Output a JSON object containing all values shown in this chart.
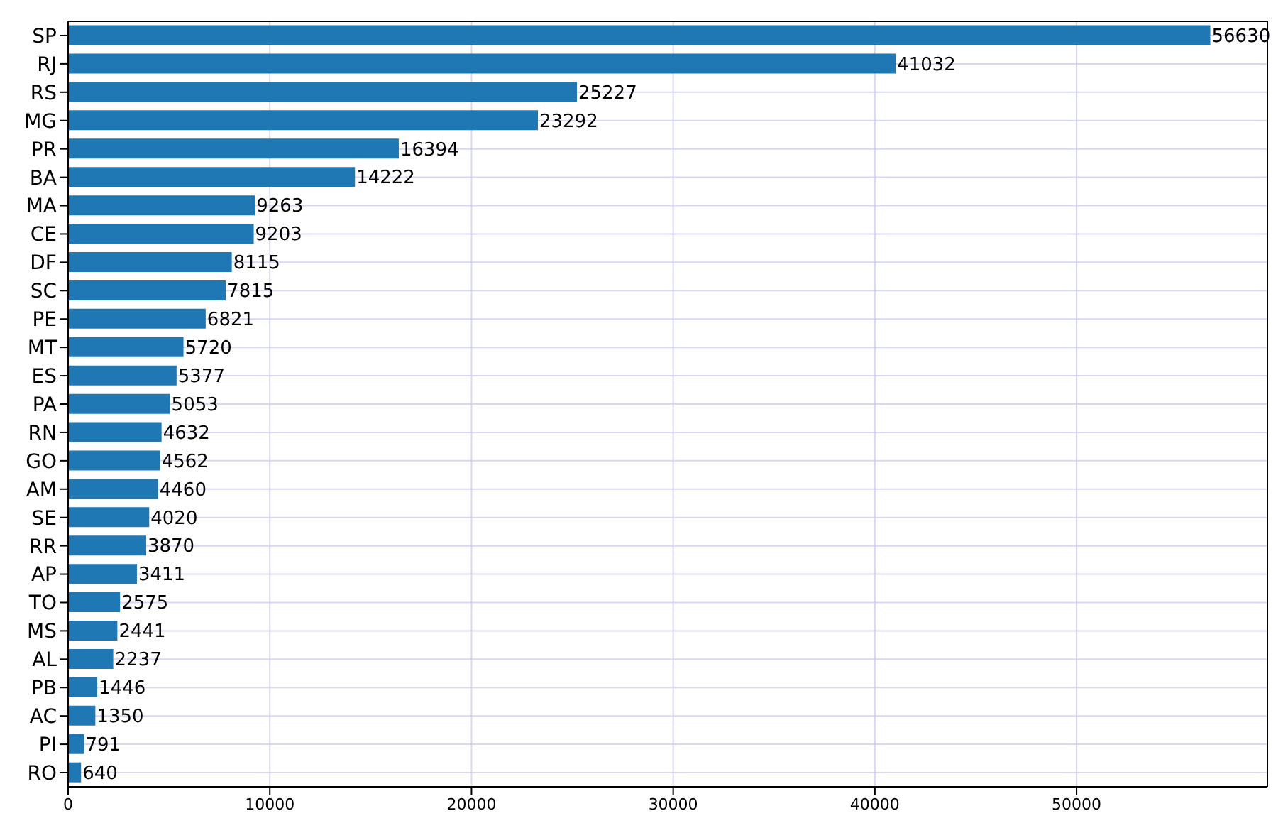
{
  "chart_data": {
    "type": "bar",
    "orientation": "horizontal",
    "categories": [
      "SP",
      "RJ",
      "RS",
      "MG",
      "PR",
      "BA",
      "MA",
      "CE",
      "DF",
      "SC",
      "PE",
      "MT",
      "ES",
      "PA",
      "RN",
      "GO",
      "AM",
      "SE",
      "RR",
      "AP",
      "TO",
      "MS",
      "AL",
      "PB",
      "AC",
      "PI",
      "RO"
    ],
    "values": [
      56630,
      41032,
      25227,
      23292,
      16394,
      14222,
      9263,
      9203,
      8115,
      7815,
      6821,
      5720,
      5377,
      5053,
      4632,
      4562,
      4460,
      4020,
      3870,
      3411,
      2575,
      2441,
      2237,
      1446,
      1350,
      791,
      640
    ],
    "color": "#1f77b4",
    "xlim": [
      0,
      59461.5
    ],
    "xticks": [
      0,
      10000,
      20000,
      30000,
      40000,
      50000
    ],
    "grid": true,
    "data_labels": true
  }
}
